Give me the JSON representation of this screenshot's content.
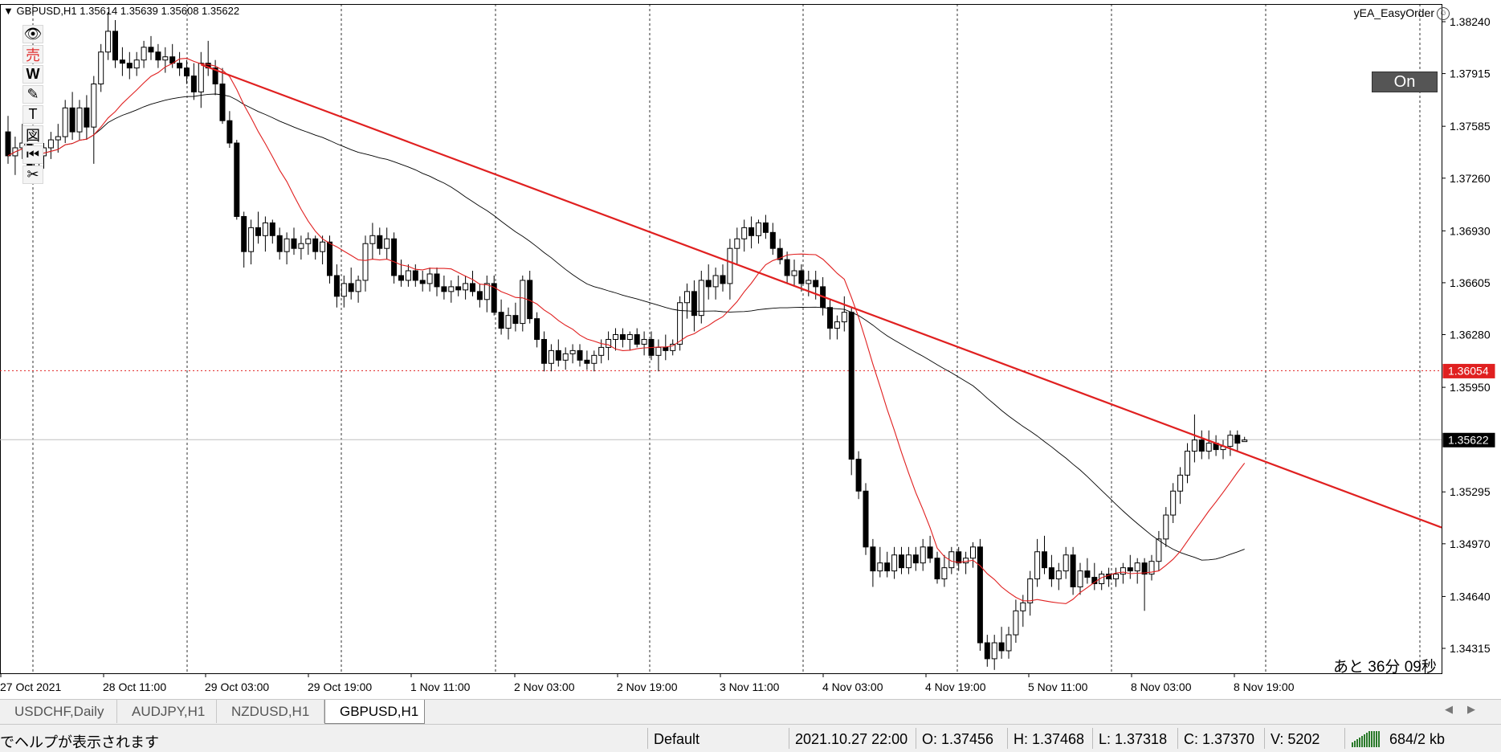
{
  "header": {
    "symbol_info": "GBPUSD,H1  1.35614 1.35639 1.35608 1.35622",
    "ea_name": "yEA_EasyOrder"
  },
  "toolbar": {
    "tools": [
      {
        "name": "eye-icon",
        "glyph": "👁"
      },
      {
        "name": "sell-icon",
        "glyph": "売"
      },
      {
        "name": "w-icon",
        "glyph": "W"
      },
      {
        "name": "pencil-icon",
        "glyph": "✎"
      },
      {
        "name": "text-icon",
        "glyph": "T"
      },
      {
        "name": "image-icon",
        "glyph": "図"
      },
      {
        "name": "rewind-icon",
        "glyph": "⏮"
      },
      {
        "name": "scissors-icon",
        "glyph": "✂"
      }
    ]
  },
  "on_button": "On",
  "timer": "あと 36分 09秒",
  "price_axis": {
    "labels": [
      "1.38240",
      "1.37915",
      "1.37585",
      "1.37260",
      "1.36930",
      "1.36605",
      "1.36280",
      "1.35950",
      "1.35295",
      "1.34970",
      "1.34640",
      "1.34315"
    ],
    "red_level": "1.36054",
    "current_price": "1.35622"
  },
  "time_axis": {
    "labels": [
      "27 Oct 2021",
      "28 Oct 11:00",
      "29 Oct 03:00",
      "29 Oct 19:00",
      "1 Nov 11:00",
      "2 Nov 03:00",
      "2 Nov 19:00",
      "3 Nov 11:00",
      "4 Nov 03:00",
      "4 Nov 19:00",
      "5 Nov 11:00",
      "8 Nov 03:00",
      "8 Nov 19:00"
    ]
  },
  "chart_data": {
    "type": "candlestick",
    "symbol": "GBPUSD",
    "timeframe": "H1",
    "ylim": [
      1.3415,
      1.384
    ],
    "candles": [
      {
        "o": 1.3755,
        "h": 1.3765,
        "l": 1.3735,
        "c": 1.374
      },
      {
        "o": 1.374,
        "h": 1.3752,
        "l": 1.3728,
        "c": 1.3745
      },
      {
        "o": 1.3745,
        "h": 1.376,
        "l": 1.3738,
        "c": 1.3748
      },
      {
        "o": 1.3748,
        "h": 1.375,
        "l": 1.3725,
        "c": 1.3732
      },
      {
        "o": 1.3732,
        "h": 1.3745,
        "l": 1.3725,
        "c": 1.374
      },
      {
        "o": 1.374,
        "h": 1.3748,
        "l": 1.3732,
        "c": 1.3745
      },
      {
        "o": 1.3745,
        "h": 1.3755,
        "l": 1.3738,
        "c": 1.375
      },
      {
        "o": 1.375,
        "h": 1.376,
        "l": 1.3742,
        "c": 1.3752
      },
      {
        "o": 1.3752,
        "h": 1.3775,
        "l": 1.3748,
        "c": 1.377
      },
      {
        "o": 1.377,
        "h": 1.378,
        "l": 1.375,
        "c": 1.3755
      },
      {
        "o": 1.3755,
        "h": 1.3775,
        "l": 1.375,
        "c": 1.377
      },
      {
        "o": 1.377,
        "h": 1.3778,
        "l": 1.375,
        "c": 1.3758
      },
      {
        "o": 1.3758,
        "h": 1.379,
        "l": 1.3735,
        "c": 1.3785
      },
      {
        "o": 1.3785,
        "h": 1.381,
        "l": 1.378,
        "c": 1.3805
      },
      {
        "o": 1.3805,
        "h": 1.383,
        "l": 1.38,
        "c": 1.3818
      },
      {
        "o": 1.3818,
        "h": 1.3825,
        "l": 1.3795,
        "c": 1.38
      },
      {
        "o": 1.38,
        "h": 1.3808,
        "l": 1.379,
        "c": 1.3798
      },
      {
        "o": 1.3798,
        "h": 1.3805,
        "l": 1.3788,
        "c": 1.3795
      },
      {
        "o": 1.3795,
        "h": 1.3805,
        "l": 1.379,
        "c": 1.38
      },
      {
        "o": 1.38,
        "h": 1.3812,
        "l": 1.3795,
        "c": 1.3808
      },
      {
        "o": 1.3808,
        "h": 1.3815,
        "l": 1.38,
        "c": 1.3805
      },
      {
        "o": 1.3805,
        "h": 1.381,
        "l": 1.3795,
        "c": 1.38
      },
      {
        "o": 1.38,
        "h": 1.3808,
        "l": 1.3792,
        "c": 1.3802
      },
      {
        "o": 1.3802,
        "h": 1.381,
        "l": 1.3795,
        "c": 1.3798
      },
      {
        "o": 1.3798,
        "h": 1.3805,
        "l": 1.379,
        "c": 1.3795
      },
      {
        "o": 1.3795,
        "h": 1.38,
        "l": 1.3785,
        "c": 1.379
      },
      {
        "o": 1.379,
        "h": 1.3798,
        "l": 1.3775,
        "c": 1.378
      },
      {
        "o": 1.378,
        "h": 1.3805,
        "l": 1.377,
        "c": 1.3798
      },
      {
        "o": 1.3798,
        "h": 1.3812,
        "l": 1.379,
        "c": 1.3795
      },
      {
        "o": 1.3795,
        "h": 1.38,
        "l": 1.3778,
        "c": 1.3785
      },
      {
        "o": 1.3785,
        "h": 1.3795,
        "l": 1.376,
        "c": 1.3762
      },
      {
        "o": 1.3762,
        "h": 1.3768,
        "l": 1.3745,
        "c": 1.3748
      },
      {
        "o": 1.3748,
        "h": 1.375,
        "l": 1.37,
        "c": 1.3702
      },
      {
        "o": 1.3702,
        "h": 1.3705,
        "l": 1.367,
        "c": 1.368
      },
      {
        "o": 1.368,
        "h": 1.37,
        "l": 1.3672,
        "c": 1.3695
      },
      {
        "o": 1.3695,
        "h": 1.3705,
        "l": 1.3685,
        "c": 1.369
      },
      {
        "o": 1.369,
        "h": 1.3702,
        "l": 1.368,
        "c": 1.3698
      },
      {
        "o": 1.3698,
        "h": 1.37,
        "l": 1.3685,
        "c": 1.369
      },
      {
        "o": 1.369,
        "h": 1.3695,
        "l": 1.3675,
        "c": 1.368
      },
      {
        "o": 1.368,
        "h": 1.3692,
        "l": 1.3672,
        "c": 1.3688
      },
      {
        "o": 1.3688,
        "h": 1.3695,
        "l": 1.3678,
        "c": 1.3682
      },
      {
        "o": 1.3682,
        "h": 1.369,
        "l": 1.3675,
        "c": 1.3685
      },
      {
        "o": 1.3685,
        "h": 1.3692,
        "l": 1.3678,
        "c": 1.3688
      },
      {
        "o": 1.3688,
        "h": 1.369,
        "l": 1.3675,
        "c": 1.368
      },
      {
        "o": 1.368,
        "h": 1.369,
        "l": 1.3672,
        "c": 1.3686
      },
      {
        "o": 1.3686,
        "h": 1.369,
        "l": 1.366,
        "c": 1.3665
      },
      {
        "o": 1.3665,
        "h": 1.3672,
        "l": 1.3645,
        "c": 1.3652
      },
      {
        "o": 1.3652,
        "h": 1.3665,
        "l": 1.3645,
        "c": 1.366
      },
      {
        "o": 1.366,
        "h": 1.367,
        "l": 1.365,
        "c": 1.3655
      },
      {
        "o": 1.3655,
        "h": 1.3665,
        "l": 1.3648,
        "c": 1.3662
      },
      {
        "o": 1.3662,
        "h": 1.369,
        "l": 1.3655,
        "c": 1.3685
      },
      {
        "o": 1.3685,
        "h": 1.3698,
        "l": 1.3675,
        "c": 1.369
      },
      {
        "o": 1.369,
        "h": 1.3695,
        "l": 1.3678,
        "c": 1.3682
      },
      {
        "o": 1.3682,
        "h": 1.3695,
        "l": 1.3675,
        "c": 1.3688
      },
      {
        "o": 1.3688,
        "h": 1.3692,
        "l": 1.366,
        "c": 1.3665
      },
      {
        "o": 1.3665,
        "h": 1.3675,
        "l": 1.3658,
        "c": 1.3662
      },
      {
        "o": 1.3662,
        "h": 1.3672,
        "l": 1.3658,
        "c": 1.3668
      },
      {
        "o": 1.3668,
        "h": 1.3672,
        "l": 1.3658,
        "c": 1.3662
      },
      {
        "o": 1.3662,
        "h": 1.3668,
        "l": 1.3655,
        "c": 1.366
      },
      {
        "o": 1.366,
        "h": 1.367,
        "l": 1.3655,
        "c": 1.3666
      },
      {
        "o": 1.3666,
        "h": 1.367,
        "l": 1.3652,
        "c": 1.3658
      },
      {
        "o": 1.3658,
        "h": 1.3665,
        "l": 1.365,
        "c": 1.3655
      },
      {
        "o": 1.3655,
        "h": 1.3662,
        "l": 1.3648,
        "c": 1.3658
      },
      {
        "o": 1.3658,
        "h": 1.3665,
        "l": 1.3652,
        "c": 1.3656
      },
      {
        "o": 1.3656,
        "h": 1.3665,
        "l": 1.365,
        "c": 1.366
      },
      {
        "o": 1.366,
        "h": 1.3668,
        "l": 1.3652,
        "c": 1.3655
      },
      {
        "o": 1.3655,
        "h": 1.366,
        "l": 1.3645,
        "c": 1.365
      },
      {
        "o": 1.365,
        "h": 1.3665,
        "l": 1.3642,
        "c": 1.366
      },
      {
        "o": 1.366,
        "h": 1.3665,
        "l": 1.364,
        "c": 1.3642
      },
      {
        "o": 1.3642,
        "h": 1.365,
        "l": 1.3628,
        "c": 1.3632
      },
      {
        "o": 1.3632,
        "h": 1.3645,
        "l": 1.3625,
        "c": 1.364
      },
      {
        "o": 1.364,
        "h": 1.3648,
        "l": 1.363,
        "c": 1.3635
      },
      {
        "o": 1.3635,
        "h": 1.3665,
        "l": 1.363,
        "c": 1.3662
      },
      {
        "o": 1.3662,
        "h": 1.3668,
        "l": 1.3635,
        "c": 1.3638
      },
      {
        "o": 1.3638,
        "h": 1.3642,
        "l": 1.362,
        "c": 1.3625
      },
      {
        "o": 1.3625,
        "h": 1.363,
        "l": 1.3605,
        "c": 1.361
      },
      {
        "o": 1.361,
        "h": 1.3622,
        "l": 1.3605,
        "c": 1.3618
      },
      {
        "o": 1.3618,
        "h": 1.3625,
        "l": 1.3608,
        "c": 1.3612
      },
      {
        "o": 1.3612,
        "h": 1.362,
        "l": 1.3606,
        "c": 1.3616
      },
      {
        "o": 1.3616,
        "h": 1.3622,
        "l": 1.361,
        "c": 1.3618
      },
      {
        "o": 1.3618,
        "h": 1.3622,
        "l": 1.3608,
        "c": 1.3612
      },
      {
        "o": 1.3612,
        "h": 1.3618,
        "l": 1.3606,
        "c": 1.361
      },
      {
        "o": 1.361,
        "h": 1.3618,
        "l": 1.3605,
        "c": 1.3615
      },
      {
        "o": 1.3615,
        "h": 1.3625,
        "l": 1.361,
        "c": 1.362
      },
      {
        "o": 1.362,
        "h": 1.363,
        "l": 1.3612,
        "c": 1.3625
      },
      {
        "o": 1.3625,
        "h": 1.3632,
        "l": 1.3618,
        "c": 1.3628
      },
      {
        "o": 1.3628,
        "h": 1.3632,
        "l": 1.362,
        "c": 1.3625
      },
      {
        "o": 1.3625,
        "h": 1.363,
        "l": 1.3618,
        "c": 1.3628
      },
      {
        "o": 1.3628,
        "h": 1.3632,
        "l": 1.362,
        "c": 1.3622
      },
      {
        "o": 1.3622,
        "h": 1.363,
        "l": 1.3615,
        "c": 1.3625
      },
      {
        "o": 1.3625,
        "h": 1.363,
        "l": 1.3612,
        "c": 1.3615
      },
      {
        "o": 1.3615,
        "h": 1.3625,
        "l": 1.3605,
        "c": 1.362
      },
      {
        "o": 1.362,
        "h": 1.3628,
        "l": 1.3612,
        "c": 1.3618
      },
      {
        "o": 1.3618,
        "h": 1.3625,
        "l": 1.3615,
        "c": 1.3622
      },
      {
        "o": 1.3622,
        "h": 1.3652,
        "l": 1.3618,
        "c": 1.3648
      },
      {
        "o": 1.3648,
        "h": 1.366,
        "l": 1.3638,
        "c": 1.3655
      },
      {
        "o": 1.3655,
        "h": 1.3662,
        "l": 1.363,
        "c": 1.364
      },
      {
        "o": 1.364,
        "h": 1.3668,
        "l": 1.3635,
        "c": 1.3662
      },
      {
        "o": 1.3662,
        "h": 1.3672,
        "l": 1.365,
        "c": 1.3658
      },
      {
        "o": 1.3658,
        "h": 1.367,
        "l": 1.365,
        "c": 1.3665
      },
      {
        "o": 1.3665,
        "h": 1.3672,
        "l": 1.3655,
        "c": 1.366
      },
      {
        "o": 1.366,
        "h": 1.3688,
        "l": 1.365,
        "c": 1.3682
      },
      {
        "o": 1.3682,
        "h": 1.3695,
        "l": 1.3672,
        "c": 1.3688
      },
      {
        "o": 1.3688,
        "h": 1.37,
        "l": 1.368,
        "c": 1.3695
      },
      {
        "o": 1.3695,
        "h": 1.3702,
        "l": 1.3682,
        "c": 1.369
      },
      {
        "o": 1.369,
        "h": 1.37,
        "l": 1.3685,
        "c": 1.3698
      },
      {
        "o": 1.3698,
        "h": 1.3703,
        "l": 1.3688,
        "c": 1.3692
      },
      {
        "o": 1.3692,
        "h": 1.3698,
        "l": 1.3678,
        "c": 1.3682
      },
      {
        "o": 1.3682,
        "h": 1.3688,
        "l": 1.3672,
        "c": 1.3675
      },
      {
        "o": 1.3675,
        "h": 1.368,
        "l": 1.366,
        "c": 1.3665
      },
      {
        "o": 1.3665,
        "h": 1.3675,
        "l": 1.3658,
        "c": 1.3668
      },
      {
        "o": 1.3668,
        "h": 1.3672,
        "l": 1.3655,
        "c": 1.366
      },
      {
        "o": 1.366,
        "h": 1.3668,
        "l": 1.3652,
        "c": 1.3662
      },
      {
        "o": 1.3662,
        "h": 1.3668,
        "l": 1.365,
        "c": 1.3658
      },
      {
        "o": 1.3658,
        "h": 1.3664,
        "l": 1.364,
        "c": 1.3645
      },
      {
        "o": 1.3645,
        "h": 1.365,
        "l": 1.3625,
        "c": 1.3632
      },
      {
        "o": 1.3632,
        "h": 1.364,
        "l": 1.3625,
        "c": 1.3636
      },
      {
        "o": 1.3636,
        "h": 1.3652,
        "l": 1.363,
        "c": 1.3642
      },
      {
        "o": 1.3642,
        "h": 1.3645,
        "l": 1.354,
        "c": 1.355
      },
      {
        "o": 1.355,
        "h": 1.3555,
        "l": 1.3525,
        "c": 1.353
      },
      {
        "o": 1.353,
        "h": 1.3535,
        "l": 1.349,
        "c": 1.3495
      },
      {
        "o": 1.3495,
        "h": 1.35,
        "l": 1.347,
        "c": 1.348
      },
      {
        "o": 1.348,
        "h": 1.3495,
        "l": 1.3476,
        "c": 1.3485
      },
      {
        "o": 1.3485,
        "h": 1.3492,
        "l": 1.3476,
        "c": 1.348
      },
      {
        "o": 1.348,
        "h": 1.3495,
        "l": 1.3475,
        "c": 1.349
      },
      {
        "o": 1.349,
        "h": 1.3495,
        "l": 1.3478,
        "c": 1.3482
      },
      {
        "o": 1.3482,
        "h": 1.3495,
        "l": 1.3478,
        "c": 1.349
      },
      {
        "o": 1.349,
        "h": 1.3495,
        "l": 1.348,
        "c": 1.3485
      },
      {
        "o": 1.3485,
        "h": 1.35,
        "l": 1.348,
        "c": 1.3495
      },
      {
        "o": 1.3495,
        "h": 1.3502,
        "l": 1.3485,
        "c": 1.3488
      },
      {
        "o": 1.3488,
        "h": 1.3492,
        "l": 1.3472,
        "c": 1.3475
      },
      {
        "o": 1.3475,
        "h": 1.349,
        "l": 1.347,
        "c": 1.3482
      },
      {
        "o": 1.3482,
        "h": 1.3495,
        "l": 1.3478,
        "c": 1.3492
      },
      {
        "o": 1.3492,
        "h": 1.3495,
        "l": 1.348,
        "c": 1.3485
      },
      {
        "o": 1.3485,
        "h": 1.3492,
        "l": 1.3478,
        "c": 1.3488
      },
      {
        "o": 1.3488,
        "h": 1.3498,
        "l": 1.3482,
        "c": 1.3495
      },
      {
        "o": 1.3495,
        "h": 1.35,
        "l": 1.343,
        "c": 1.3435
      },
      {
        "o": 1.3435,
        "h": 1.344,
        "l": 1.342,
        "c": 1.3425
      },
      {
        "o": 1.3425,
        "h": 1.344,
        "l": 1.3418,
        "c": 1.3435
      },
      {
        "o": 1.3435,
        "h": 1.3445,
        "l": 1.3425,
        "c": 1.343
      },
      {
        "o": 1.343,
        "h": 1.3445,
        "l": 1.3425,
        "c": 1.344
      },
      {
        "o": 1.344,
        "h": 1.3462,
        "l": 1.3435,
        "c": 1.3455
      },
      {
        "o": 1.3455,
        "h": 1.3465,
        "l": 1.3445,
        "c": 1.346
      },
      {
        "o": 1.346,
        "h": 1.348,
        "l": 1.3452,
        "c": 1.3475
      },
      {
        "o": 1.3475,
        "h": 1.35,
        "l": 1.347,
        "c": 1.3492
      },
      {
        "o": 1.3492,
        "h": 1.3502,
        "l": 1.3478,
        "c": 1.3482
      },
      {
        "o": 1.3482,
        "h": 1.349,
        "l": 1.347,
        "c": 1.3475
      },
      {
        "o": 1.3475,
        "h": 1.3485,
        "l": 1.3468,
        "c": 1.348
      },
      {
        "o": 1.348,
        "h": 1.3495,
        "l": 1.3475,
        "c": 1.349
      },
      {
        "o": 1.349,
        "h": 1.3495,
        "l": 1.3465,
        "c": 1.347
      },
      {
        "o": 1.347,
        "h": 1.3485,
        "l": 1.3465,
        "c": 1.348
      },
      {
        "o": 1.348,
        "h": 1.3488,
        "l": 1.3472,
        "c": 1.3476
      },
      {
        "o": 1.3476,
        "h": 1.3485,
        "l": 1.3468,
        "c": 1.3472
      },
      {
        "o": 1.3472,
        "h": 1.348,
        "l": 1.3468,
        "c": 1.3478
      },
      {
        "o": 1.3478,
        "h": 1.3482,
        "l": 1.347,
        "c": 1.3475
      },
      {
        "o": 1.3475,
        "h": 1.3482,
        "l": 1.347,
        "c": 1.3478
      },
      {
        "o": 1.3478,
        "h": 1.3485,
        "l": 1.3472,
        "c": 1.3482
      },
      {
        "o": 1.3482,
        "h": 1.349,
        "l": 1.3475,
        "c": 1.348
      },
      {
        "o": 1.348,
        "h": 1.3488,
        "l": 1.3472,
        "c": 1.3485
      },
      {
        "o": 1.3485,
        "h": 1.3488,
        "l": 1.3455,
        "c": 1.3478
      },
      {
        "o": 1.3478,
        "h": 1.349,
        "l": 1.3474,
        "c": 1.3486
      },
      {
        "o": 1.3486,
        "h": 1.3505,
        "l": 1.348,
        "c": 1.35
      },
      {
        "o": 1.35,
        "h": 1.352,
        "l": 1.3495,
        "c": 1.3515
      },
      {
        "o": 1.3515,
        "h": 1.3535,
        "l": 1.351,
        "c": 1.353
      },
      {
        "o": 1.353,
        "h": 1.3545,
        "l": 1.3522,
        "c": 1.354
      },
      {
        "o": 1.354,
        "h": 1.356,
        "l": 1.3535,
        "c": 1.3555
      },
      {
        "o": 1.3555,
        "h": 1.3578,
        "l": 1.3548,
        "c": 1.3562
      },
      {
        "o": 1.3562,
        "h": 1.3568,
        "l": 1.355,
        "c": 1.3555
      },
      {
        "o": 1.3555,
        "h": 1.3568,
        "l": 1.355,
        "c": 1.356
      },
      {
        "o": 1.356,
        "h": 1.3565,
        "l": 1.3552,
        "c": 1.3556
      },
      {
        "o": 1.3556,
        "h": 1.3562,
        "l": 1.355,
        "c": 1.3558
      },
      {
        "o": 1.3558,
        "h": 1.3568,
        "l": 1.3552,
        "c": 1.3565
      },
      {
        "o": 1.3565,
        "h": 1.3568,
        "l": 1.3555,
        "c": 1.356
      },
      {
        "o": 1.3561,
        "h": 1.3564,
        "l": 1.3561,
        "c": 1.3562
      }
    ],
    "trendline": {
      "from": {
        "candle": 0,
        "price": 1.38055
      },
      "to": {
        "candle": 151,
        "price": 1.359
      },
      "anchor_candle": 29
    },
    "horizontal_levels": [
      {
        "price": 1.36054,
        "style": "dotted",
        "color": "#e02020"
      },
      {
        "price": 1.35622,
        "style": "solid",
        "color": "#c0c0c0"
      }
    ],
    "colors": {
      "fast_ma": "#e02020",
      "slow_ma": "#000000",
      "trendline": "#e02020"
    }
  },
  "tabs": [
    {
      "label": "USDCHF,Daily",
      "active": false
    },
    {
      "label": "AUDJPY,H1",
      "active": false
    },
    {
      "label": "NZDUSD,H1",
      "active": false
    },
    {
      "label": "GBPUSD,H1",
      "active": true
    }
  ],
  "status": {
    "help": "でヘルプが表示されます",
    "profile": "Default",
    "datetime": "2021.10.27 22:00",
    "open": "O: 1.37456",
    "high": "H: 1.37468",
    "low": "L: 1.37318",
    "close": "C: 1.37370",
    "volume": "V: 5202",
    "traffic": "684/2 kb"
  }
}
